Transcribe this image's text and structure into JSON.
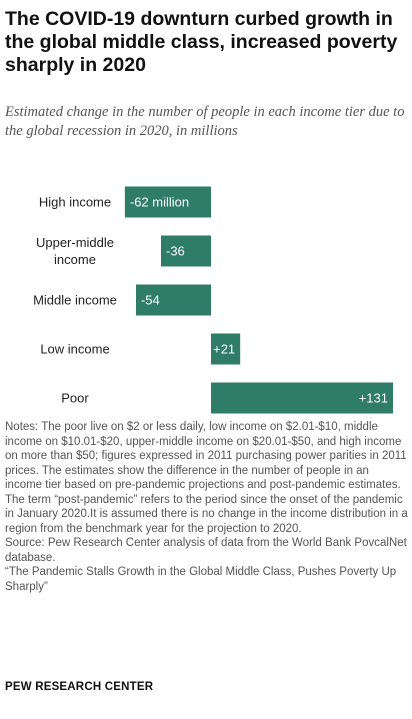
{
  "title": "The COVID-19 downturn curbed growth in the global middle class, increased poverty sharply in 2020",
  "subtitle": "Estimated change in the number of people in each income tier due to the global recession in 2020, in millions",
  "chart_data": {
    "type": "bar",
    "orientation": "horizontal",
    "categories": [
      "High income",
      "Upper-middle income",
      "Middle income",
      "Low income",
      "Poor"
    ],
    "values": [
      -62,
      -36,
      -54,
      21,
      131
    ],
    "value_labels": [
      "-62 million",
      "-36",
      "-54",
      "+21",
      "+131"
    ],
    "title": "",
    "xlabel": "",
    "ylabel": "",
    "bar_color": "#2f7d67",
    "grid": false,
    "legend": "none"
  },
  "notes": "Notes: The poor live on $2 or less daily, low income on $2.01-$10, middle income on $10.01-$20, upper-middle income on $20.01-$50, and high income on more than $50; figures expressed in 2011 purchasing power parities in 2011 prices. The estimates show the difference in the number of people in an income tier based on pre-pandemic projections and post-pandemic estimates. The term “post-pandemic” refers to the period since the onset of the pandemic in January 2020.It is assumed there is no change in the income distribution in a region from the benchmark year for the projection to 2020.",
  "source": "Source: Pew Research Center analysis of data from the World Bank PovcalNet database.",
  "report": "“The Pandemic Stalls Growth in the Global Middle Class, Pushes Poverty Up Sharply”",
  "brand": "PEW RESEARCH CENTER"
}
